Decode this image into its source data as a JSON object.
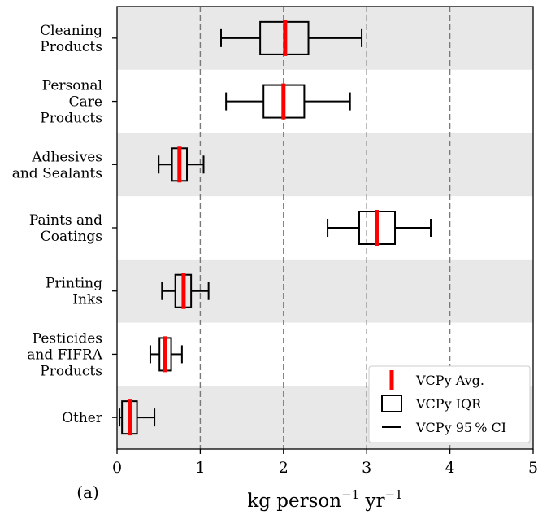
{
  "panel_label": "(a)",
  "chart_data": {
    "type": "boxplot",
    "orientation": "horizontal",
    "xlabel_base": "kg person",
    "xlabel_exp1": "−1",
    "xlabel_mid": " yr",
    "xlabel_exp2": "−1",
    "xlim": [
      0,
      5
    ],
    "xticks": [
      "0",
      "1",
      "2",
      "3",
      "4",
      "5"
    ],
    "vertical_dashed_lines": [
      1,
      2,
      3,
      4
    ],
    "alternating_band_color": "#e8e8e8",
    "avg_color": "#ff0000",
    "legend_position": "bottom-right",
    "legend": [
      {
        "kind": "avg",
        "label": "VCPy Avg."
      },
      {
        "kind": "iqr",
        "label": "VCPy IQR"
      },
      {
        "kind": "ci",
        "label": "VCPy 95 % CI"
      }
    ],
    "categories": [
      {
        "label_lines": [
          "Cleaning",
          "Products"
        ],
        "ci_low": 1.25,
        "q1": 1.72,
        "avg": 2.02,
        "q3": 2.3,
        "ci_high": 2.94,
        "shaded": true
      },
      {
        "label_lines": [
          "Personal",
          "Care",
          "Products"
        ],
        "ci_low": 1.31,
        "q1": 1.76,
        "avg": 2.0,
        "q3": 2.25,
        "ci_high": 2.8,
        "shaded": false
      },
      {
        "label_lines": [
          "Adhesives",
          "and Sealants"
        ],
        "ci_low": 0.5,
        "q1": 0.66,
        "avg": 0.75,
        "q3": 0.84,
        "ci_high": 1.04,
        "shaded": true
      },
      {
        "label_lines": [
          "Paints and",
          "Coatings"
        ],
        "ci_low": 2.53,
        "q1": 2.91,
        "avg": 3.12,
        "q3": 3.34,
        "ci_high": 3.77,
        "shaded": false
      },
      {
        "label_lines": [
          "Printing",
          "Inks"
        ],
        "ci_low": 0.54,
        "q1": 0.7,
        "avg": 0.8,
        "q3": 0.89,
        "ci_high": 1.1,
        "shaded": true
      },
      {
        "label_lines": [
          "Pesticides",
          "and FIFRA",
          "Products"
        ],
        "ci_low": 0.4,
        "q1": 0.51,
        "avg": 0.58,
        "q3": 0.65,
        "ci_high": 0.78,
        "shaded": false
      },
      {
        "label_lines": [
          "Other"
        ],
        "ci_low": 0.03,
        "q1": 0.06,
        "avg": 0.16,
        "q3": 0.24,
        "ci_high": 0.45,
        "shaded": true
      }
    ]
  }
}
